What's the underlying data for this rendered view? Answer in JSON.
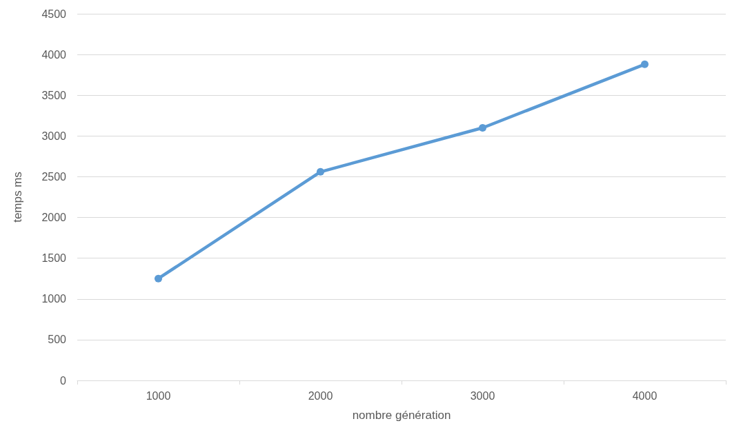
{
  "chart_data": {
    "type": "line",
    "xlabel": "nombre génération",
    "ylabel": "temps ms",
    "categories": [
      "1000",
      "2000",
      "3000",
      "4000"
    ],
    "series": [
      {
        "color": "#5b9bd5",
        "values": [
          1250,
          2560,
          3100,
          3880
        ]
      }
    ],
    "ylim": [
      0,
      4500
    ],
    "yticks": [
      0,
      500,
      1000,
      1500,
      2000,
      2500,
      3000,
      3500,
      4000,
      4500
    ],
    "grid": "y",
    "marker": "circle",
    "line_style": "solid"
  }
}
